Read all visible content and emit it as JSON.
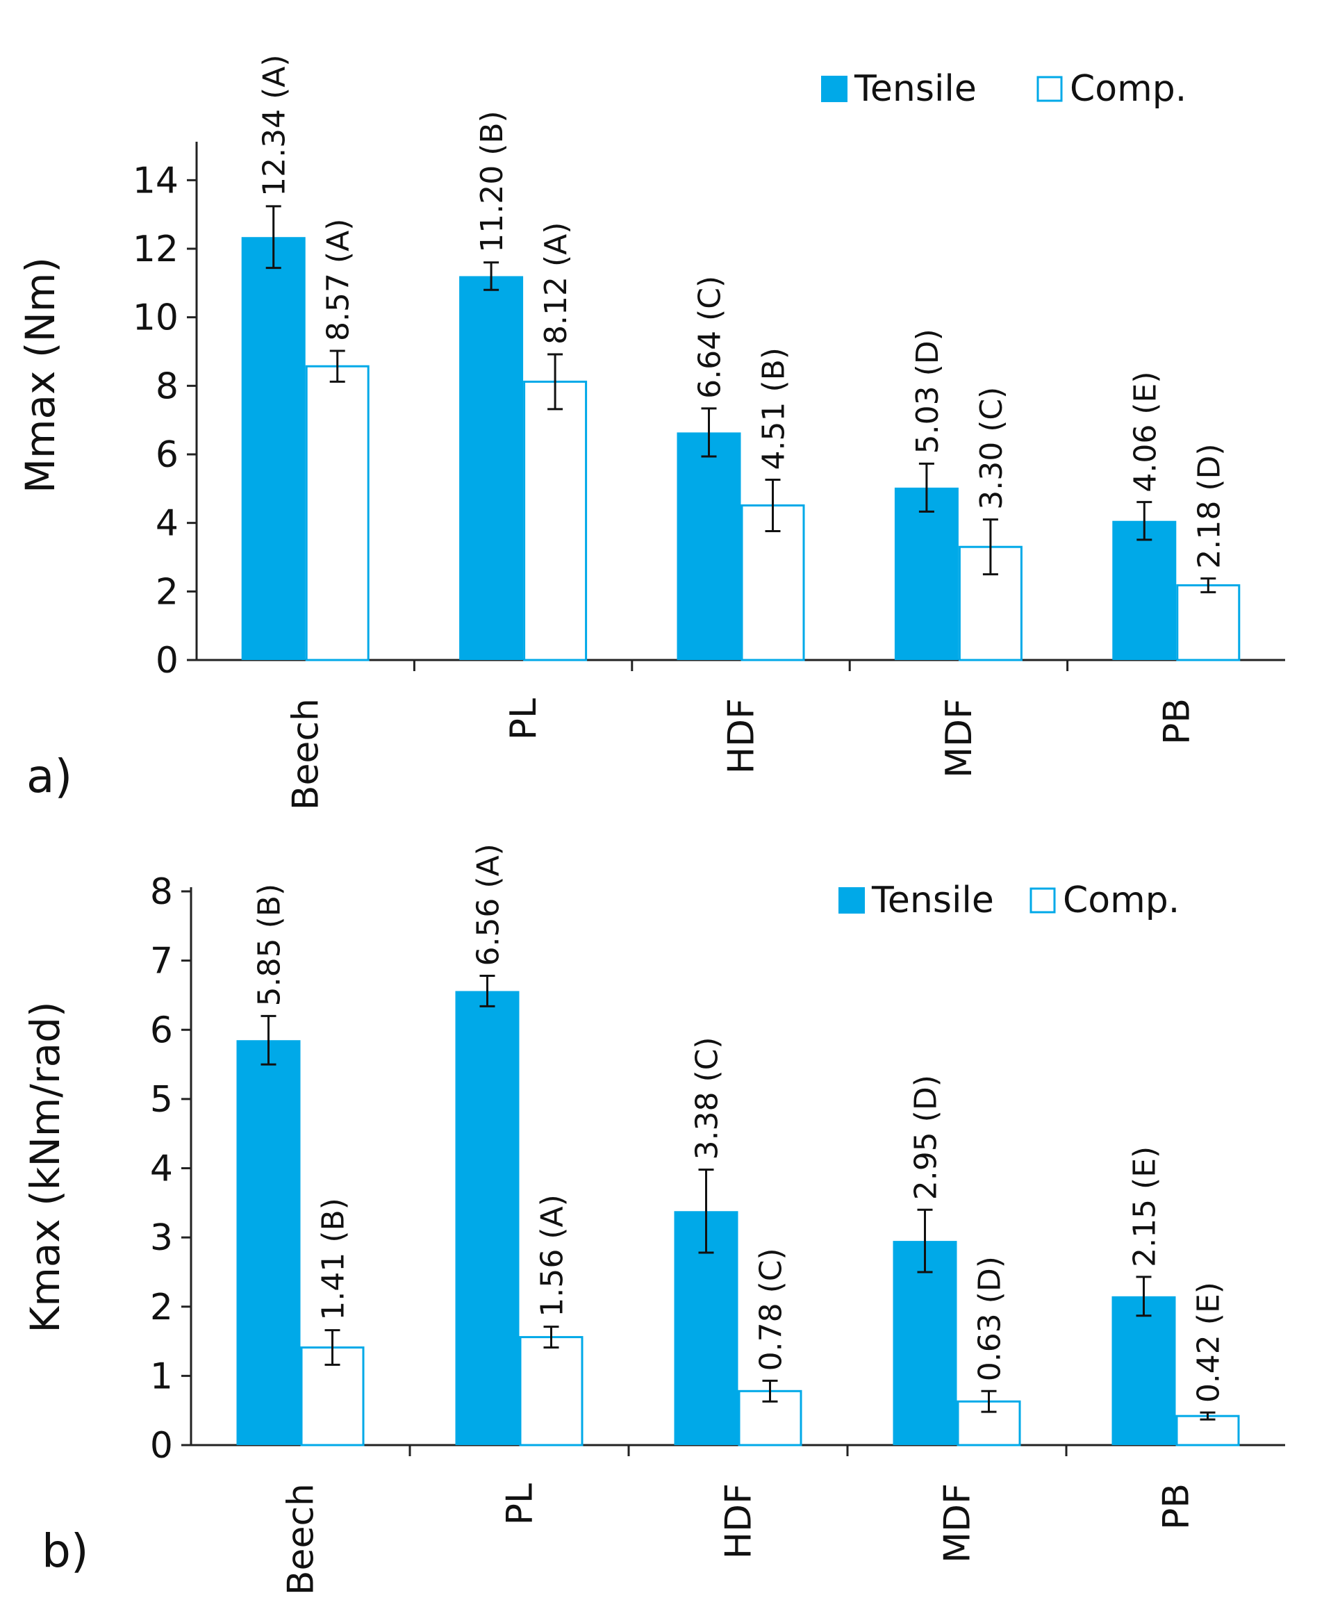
{
  "legend_colors": {
    "tensile": "#00a9e8",
    "comp_edge": "#00a9e8",
    "comp_fill": "#ffffff"
  },
  "chart_data": [
    {
      "type": "bar",
      "panel_label": "a)",
      "ylabel": "Mmax (Nm)",
      "xlabel": "",
      "ylim": [
        0,
        15
      ],
      "yticks": [
        0,
        2,
        4,
        6,
        8,
        10,
        12,
        14
      ],
      "categories": [
        "Beech",
        "PL",
        "HDF",
        "MDF",
        "PB"
      ],
      "legend_position": "top-right",
      "series": [
        {
          "name": "Tensile",
          "values": [
            12.34,
            11.2,
            6.64,
            5.03,
            4.06
          ],
          "errors": [
            0.9,
            0.4,
            0.7,
            0.7,
            0.55
          ],
          "labels": [
            "12.34 (A)",
            "11.20 (B)",
            "6.64 (C)",
            "5.03 (D)",
            "4.06 (E)"
          ]
        },
        {
          "name": "Comp.",
          "values": [
            8.57,
            8.12,
            4.51,
            3.3,
            2.18
          ],
          "errors": [
            0.45,
            0.8,
            0.75,
            0.8,
            0.2
          ],
          "labels": [
            "8.57 (A)",
            "8.12 (A)",
            "4.51 (B)",
            "3.30 (C)",
            "2.18 (D)"
          ]
        }
      ]
    },
    {
      "type": "bar",
      "panel_label": "b)",
      "ylabel": "Kmax (kNm/rad)",
      "xlabel": "",
      "ylim": [
        0,
        8
      ],
      "yticks": [
        0,
        1,
        2,
        3,
        4,
        5,
        6,
        7,
        8
      ],
      "categories": [
        "Beech",
        "PL",
        "HDF",
        "MDF",
        "PB"
      ],
      "legend_position": "top-right",
      "series": [
        {
          "name": "Tensile",
          "values": [
            5.85,
            6.56,
            3.38,
            2.95,
            2.15
          ],
          "errors": [
            0.35,
            0.22,
            0.6,
            0.45,
            0.28
          ],
          "labels": [
            "5.85 (B)",
            "6.56 (A)",
            "3.38 (C)",
            "2.95 (D)",
            "2.15 (E)"
          ]
        },
        {
          "name": "Comp.",
          "values": [
            1.41,
            1.56,
            0.78,
            0.63,
            0.42
          ],
          "errors": [
            0.25,
            0.15,
            0.15,
            0.15,
            0.05
          ],
          "labels": [
            "1.41 (B)",
            "1.56 (A)",
            "0.78 (C)",
            "0.63 (D)",
            "0.42 (E)"
          ]
        }
      ]
    }
  ]
}
